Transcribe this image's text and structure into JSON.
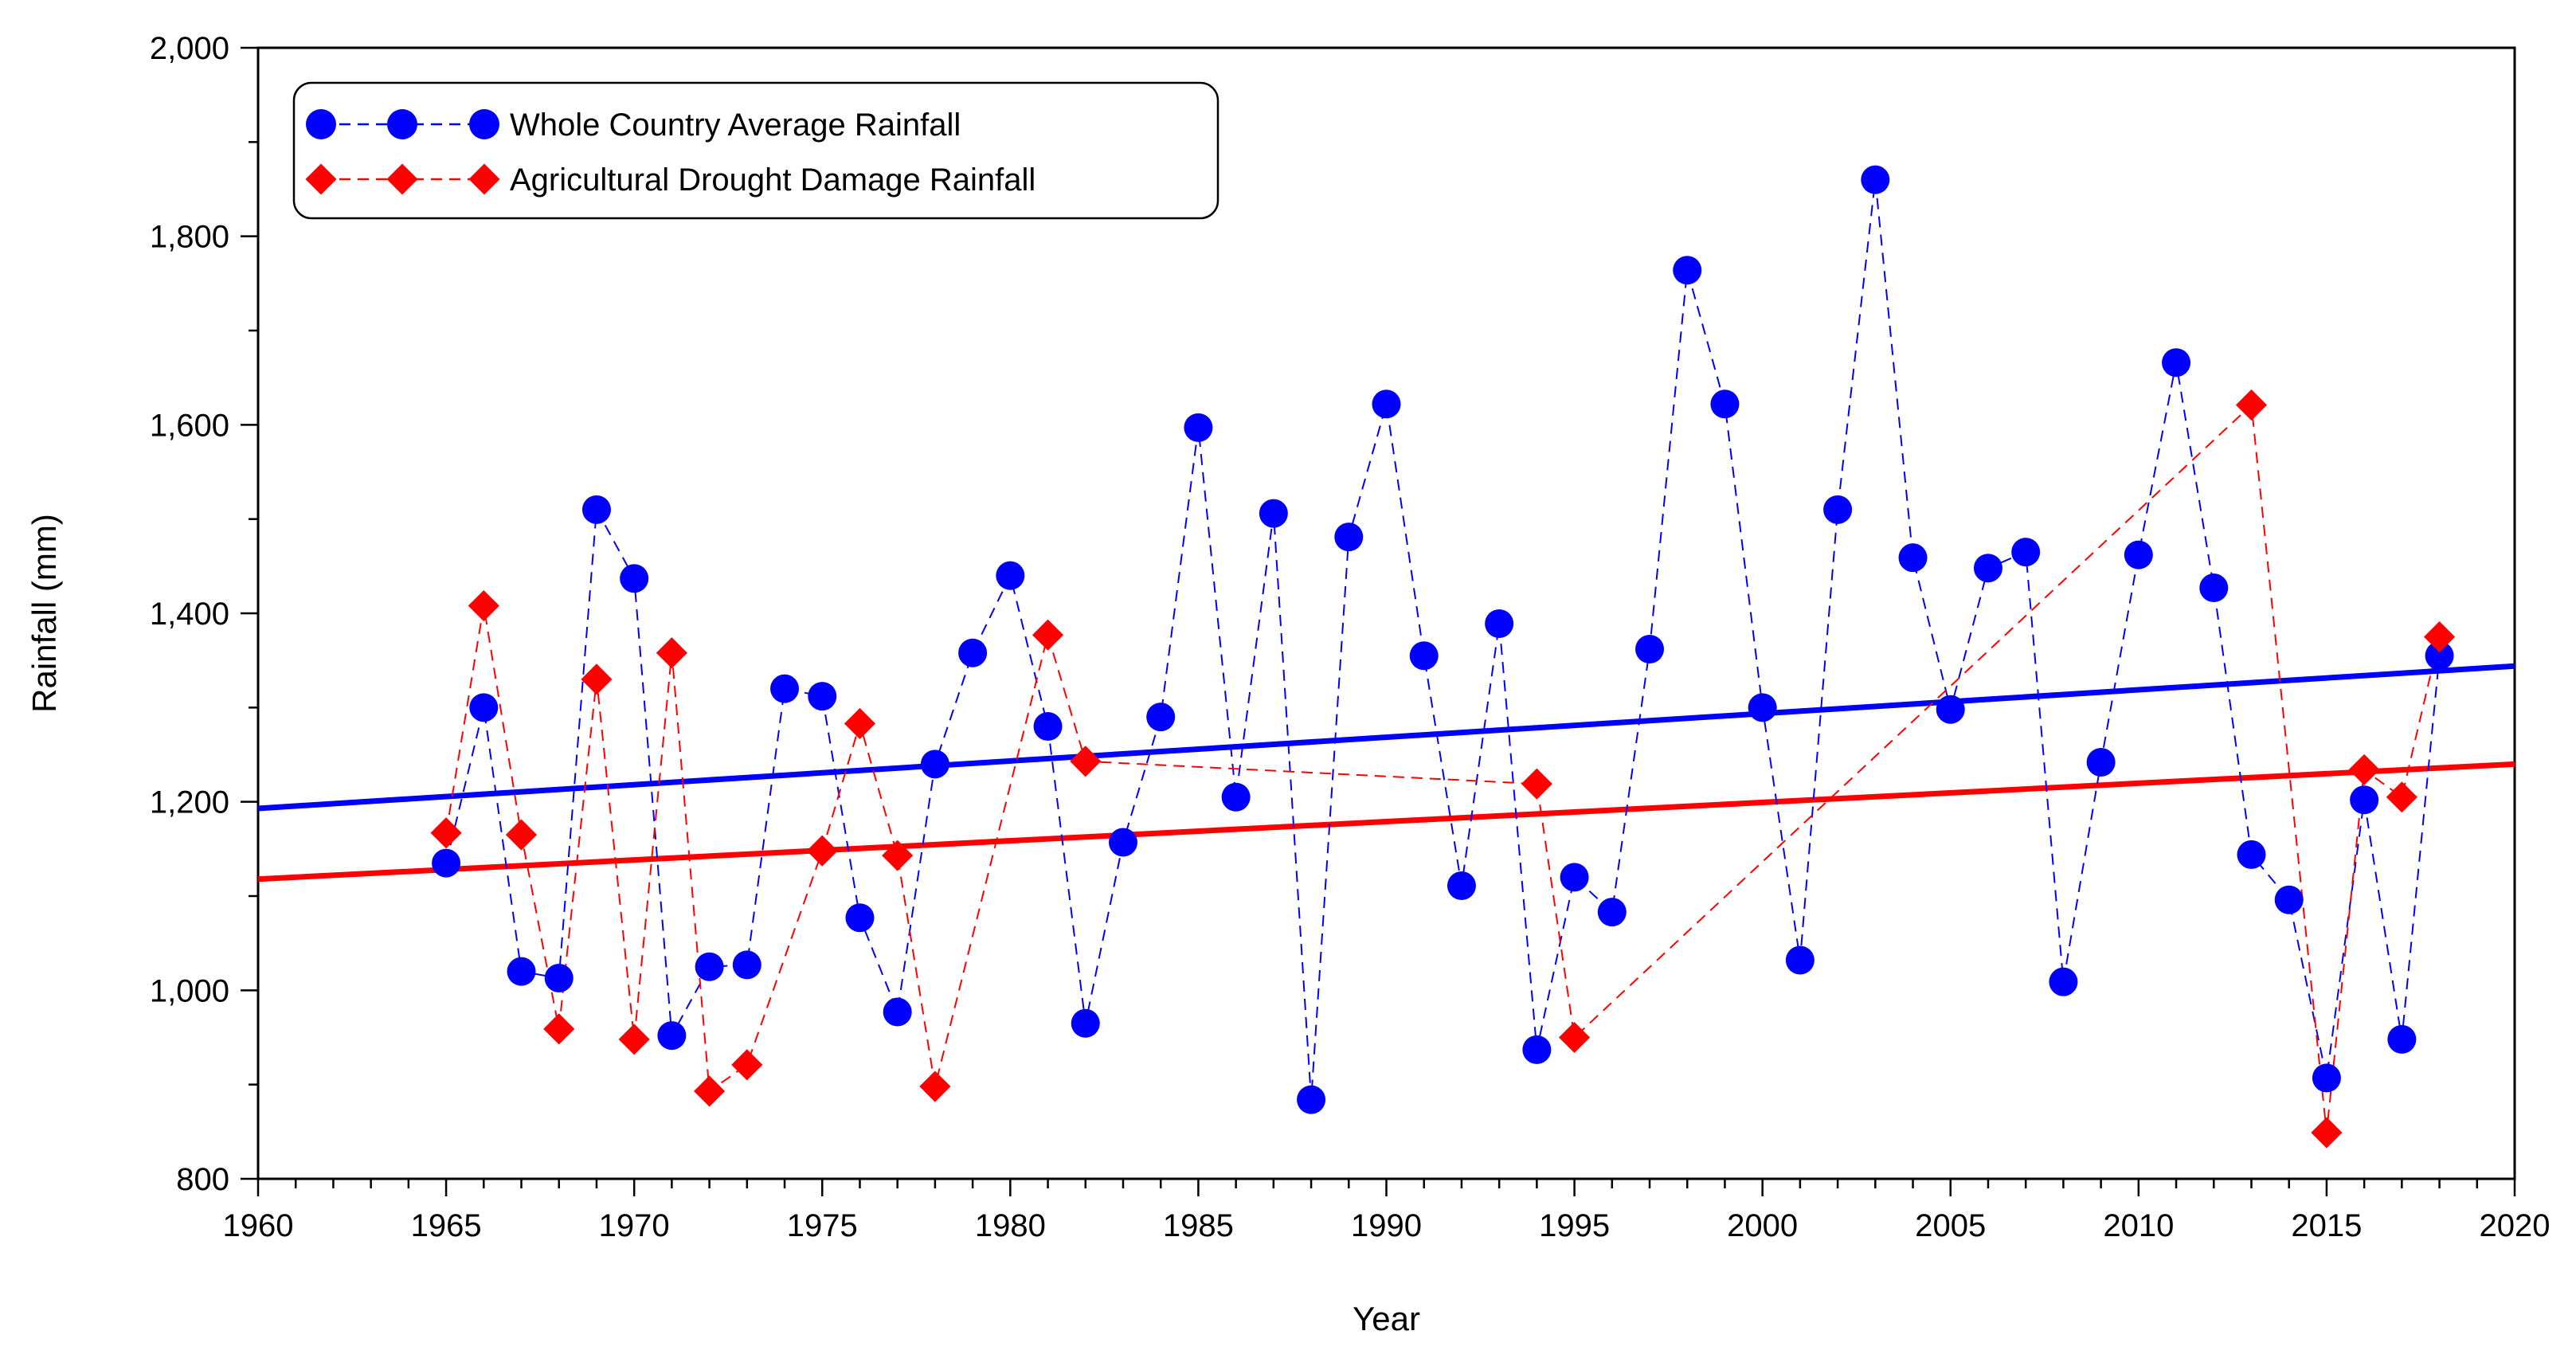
{
  "chart_data": {
    "type": "line",
    "title": "",
    "xlabel": "Year",
    "ylabel": "Rainfall (mm)",
    "xlim": [
      1960,
      2020
    ],
    "ylim": [
      800,
      2000
    ],
    "x_ticks": [
      1960,
      1965,
      1970,
      1975,
      1980,
      1985,
      1990,
      1995,
      2000,
      2005,
      2010,
      2015,
      2020
    ],
    "x_tick_labels": [
      "1960",
      "1965",
      "1970",
      "1975",
      "1980",
      "1985",
      "1990",
      "1995",
      "2000",
      "2005",
      "2010",
      "2015",
      "2020"
    ],
    "y_ticks": [
      800,
      1000,
      1200,
      1400,
      1600,
      1800,
      2000
    ],
    "y_tick_labels": [
      "800",
      "1,000",
      "1,200",
      "1,400",
      "1,600",
      "1,800",
      "2,000"
    ],
    "grid": false,
    "legend_position": "top-left",
    "series": [
      {
        "name": "Whole Country Average Rainfall",
        "color": "#0000ff",
        "marker": "circle",
        "line_style": "dashed",
        "points": [
          [
            1965,
            1135
          ],
          [
            1966,
            1300
          ],
          [
            1967,
            1020
          ],
          [
            1968,
            1013
          ],
          [
            1969,
            1510
          ],
          [
            1970,
            1437
          ],
          [
            1971,
            952
          ],
          [
            1972,
            1025
          ],
          [
            1973,
            1027
          ],
          [
            1974,
            1320
          ],
          [
            1975,
            1312
          ],
          [
            1976,
            1077
          ],
          [
            1977,
            977
          ],
          [
            1978,
            1240
          ],
          [
            1979,
            1358
          ],
          [
            1980,
            1440
          ],
          [
            1981,
            1280
          ],
          [
            1982,
            965
          ],
          [
            1983,
            1157
          ],
          [
            1984,
            1290
          ],
          [
            1985,
            1597
          ],
          [
            1986,
            1205
          ],
          [
            1987,
            1506
          ],
          [
            1988,
            884
          ],
          [
            1989,
            1481
          ],
          [
            1990,
            1622
          ],
          [
            1991,
            1355
          ],
          [
            1992,
            1111
          ],
          [
            1993,
            1389
          ],
          [
            1994,
            937
          ],
          [
            1995,
            1120
          ],
          [
            1996,
            1083
          ],
          [
            1997,
            1362
          ],
          [
            1998,
            1764
          ],
          [
            1999,
            1622
          ],
          [
            2000,
            1300
          ],
          [
            2001,
            1032
          ],
          [
            2002,
            1510
          ],
          [
            2003,
            1860
          ],
          [
            2004,
            1459
          ],
          [
            2005,
            1298
          ],
          [
            2006,
            1448
          ],
          [
            2007,
            1465
          ],
          [
            2008,
            1009
          ],
          [
            2009,
            1242
          ],
          [
            2010,
            1462
          ],
          [
            2011,
            1666
          ],
          [
            2012,
            1427
          ],
          [
            2013,
            1144
          ],
          [
            2014,
            1096
          ],
          [
            2015,
            907
          ],
          [
            2016,
            1202
          ],
          [
            2017,
            948
          ],
          [
            2018,
            1355
          ]
        ],
        "trend": {
          "x": [
            1960,
            2020
          ],
          "y": [
            1193,
            1344
          ]
        }
      },
      {
        "name": "Agricultural Drought Damage Rainfall",
        "color": "#ff0000",
        "marker": "diamond",
        "line_style": "dashed",
        "points": [
          [
            1965,
            1167
          ],
          [
            1966,
            1408
          ],
          [
            1967,
            1165
          ],
          [
            1968,
            959
          ],
          [
            1969,
            1330
          ],
          [
            1970,
            948
          ],
          [
            1971,
            1358
          ],
          [
            1972,
            893
          ],
          [
            1973,
            921
          ],
          [
            1975,
            1148
          ],
          [
            1976,
            1283
          ],
          [
            1977,
            1143
          ],
          [
            1978,
            898
          ],
          [
            1981,
            1377
          ],
          [
            1982,
            1243
          ],
          [
            1994,
            1219
          ],
          [
            1995,
            950
          ],
          [
            2013,
            1621
          ],
          [
            2015,
            849
          ],
          [
            2016,
            1234
          ],
          [
            2017,
            1205
          ],
          [
            2018,
            1375
          ]
        ],
        "trend": {
          "x": [
            1960,
            2020
          ],
          "y": [
            1118,
            1240
          ]
        }
      }
    ]
  }
}
